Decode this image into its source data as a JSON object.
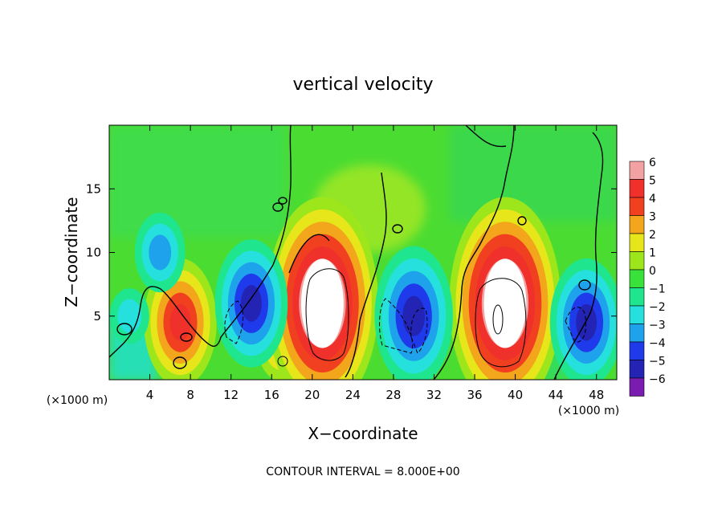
{
  "chart_data": {
    "type": "heatmap",
    "title": "vertical velocity",
    "xlabel": "X−coordinate",
    "ylabel": "Z−coordinate",
    "x_unit_left": "(×1000 m)",
    "x_unit_right": "(×1000 m)",
    "footnote": "CONTOUR INTERVAL = 8.000E+00",
    "xlim": [
      0,
      50
    ],
    "ylim": [
      0,
      20
    ],
    "x_ticks": [
      4,
      8,
      12,
      16,
      20,
      24,
      28,
      32,
      36,
      40,
      44,
      48
    ],
    "y_ticks": [
      5,
      10,
      15
    ],
    "colorbar": {
      "levels": [
        6,
        5,
        4,
        3,
        2,
        1,
        0,
        -1,
        -2,
        -3,
        -4,
        -5,
        -6
      ],
      "level_labels": [
        "6",
        "5",
        "4",
        "3",
        "2",
        "1",
        "0",
        "−1",
        "−2",
        "−3",
        "−4",
        "−5",
        "−6"
      ],
      "colors": [
        "#f2a2a2",
        "#f0302a",
        "#f04020",
        "#f3a51b",
        "#e6e61a",
        "#9ee61c",
        "#39e23a",
        "#1fe68e",
        "#25e0dc",
        "#1fa2ec",
        "#1f3aea",
        "#2323b4",
        "#7a1cb0"
      ]
    },
    "cells": [
      {
        "x": 7,
        "z": 4.5,
        "w": 4.5
      },
      {
        "x": 17,
        "z": 3,
        "w": 2.5
      },
      {
        "x": 21,
        "z": 6,
        "w": 8
      },
      {
        "x": 39,
        "z": 6,
        "w": 8
      },
      {
        "x": 14,
        "z": 6,
        "w": -4.5
      },
      {
        "x": 30,
        "z": 5,
        "w": -5
      },
      {
        "x": 47,
        "z": 4.5,
        "w": -4.5
      },
      {
        "x": 5,
        "z": 10,
        "w": -2.5
      },
      {
        "x": 2,
        "z": 5,
        "w": -1.5
      }
    ]
  }
}
